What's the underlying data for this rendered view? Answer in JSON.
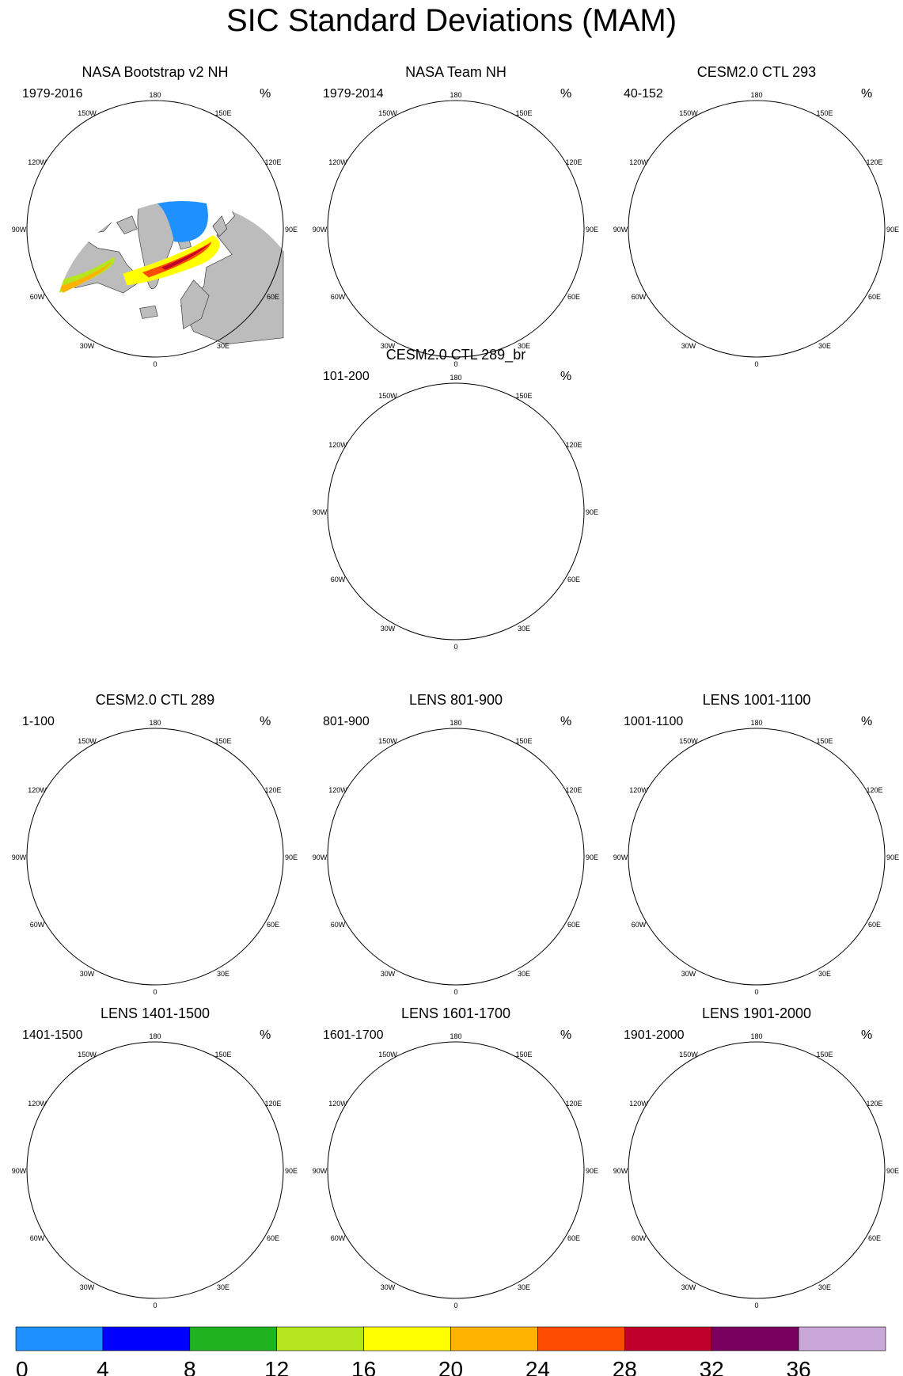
{
  "title": "SIC Standard Deviations (MAM)",
  "unit": "%",
  "longitude_labels": [
    "180",
    "150E",
    "120E",
    "90E",
    "60E",
    "30E",
    "0",
    "30W",
    "60W",
    "90W",
    "120W",
    "150W"
  ],
  "panels": [
    {
      "title": "NASA Bootstrap v2 NH",
      "period": "1979-2016",
      "variant": "obs"
    },
    {
      "title": "NASA Team NH",
      "period": "1979-2014",
      "variant": "obs_team"
    },
    {
      "title": "CESM2.0 CTL 293",
      "period": "40-152",
      "variant": "model"
    },
    {
      "title": "CESM2.0 CTL 289_br",
      "period": "101-200",
      "variant": "model"
    },
    {
      "title": "CESM2.0 CTL 289",
      "period": "1-100",
      "variant": "model"
    },
    {
      "title": "LENS 801-900",
      "period": "801-900",
      "variant": "lens"
    },
    {
      "title": "LENS 1001-1100",
      "period": "1001-1100",
      "variant": "lens"
    },
    {
      "title": "LENS 1401-1500",
      "period": "1401-1500",
      "variant": "lens"
    },
    {
      "title": "LENS 1601-1700",
      "period": "1601-1700",
      "variant": "lens"
    },
    {
      "title": "LENS 1901-2000",
      "period": "1901-2000",
      "variant": "lens"
    }
  ],
  "colorbar": {
    "colors": [
      "#1e90ff",
      "#0000ff",
      "#1fb31f",
      "#b5e61d",
      "#ffff00",
      "#ffb300",
      "#ff4d00",
      "#c0002a",
      "#7a0060",
      "#c9a7d8"
    ],
    "labels": [
      "0",
      "4",
      "8",
      "12",
      "16",
      "20",
      "24",
      "28",
      "32",
      "36"
    ]
  },
  "land_color": "#bcbcbc",
  "ocean_color": "#ffffff"
}
